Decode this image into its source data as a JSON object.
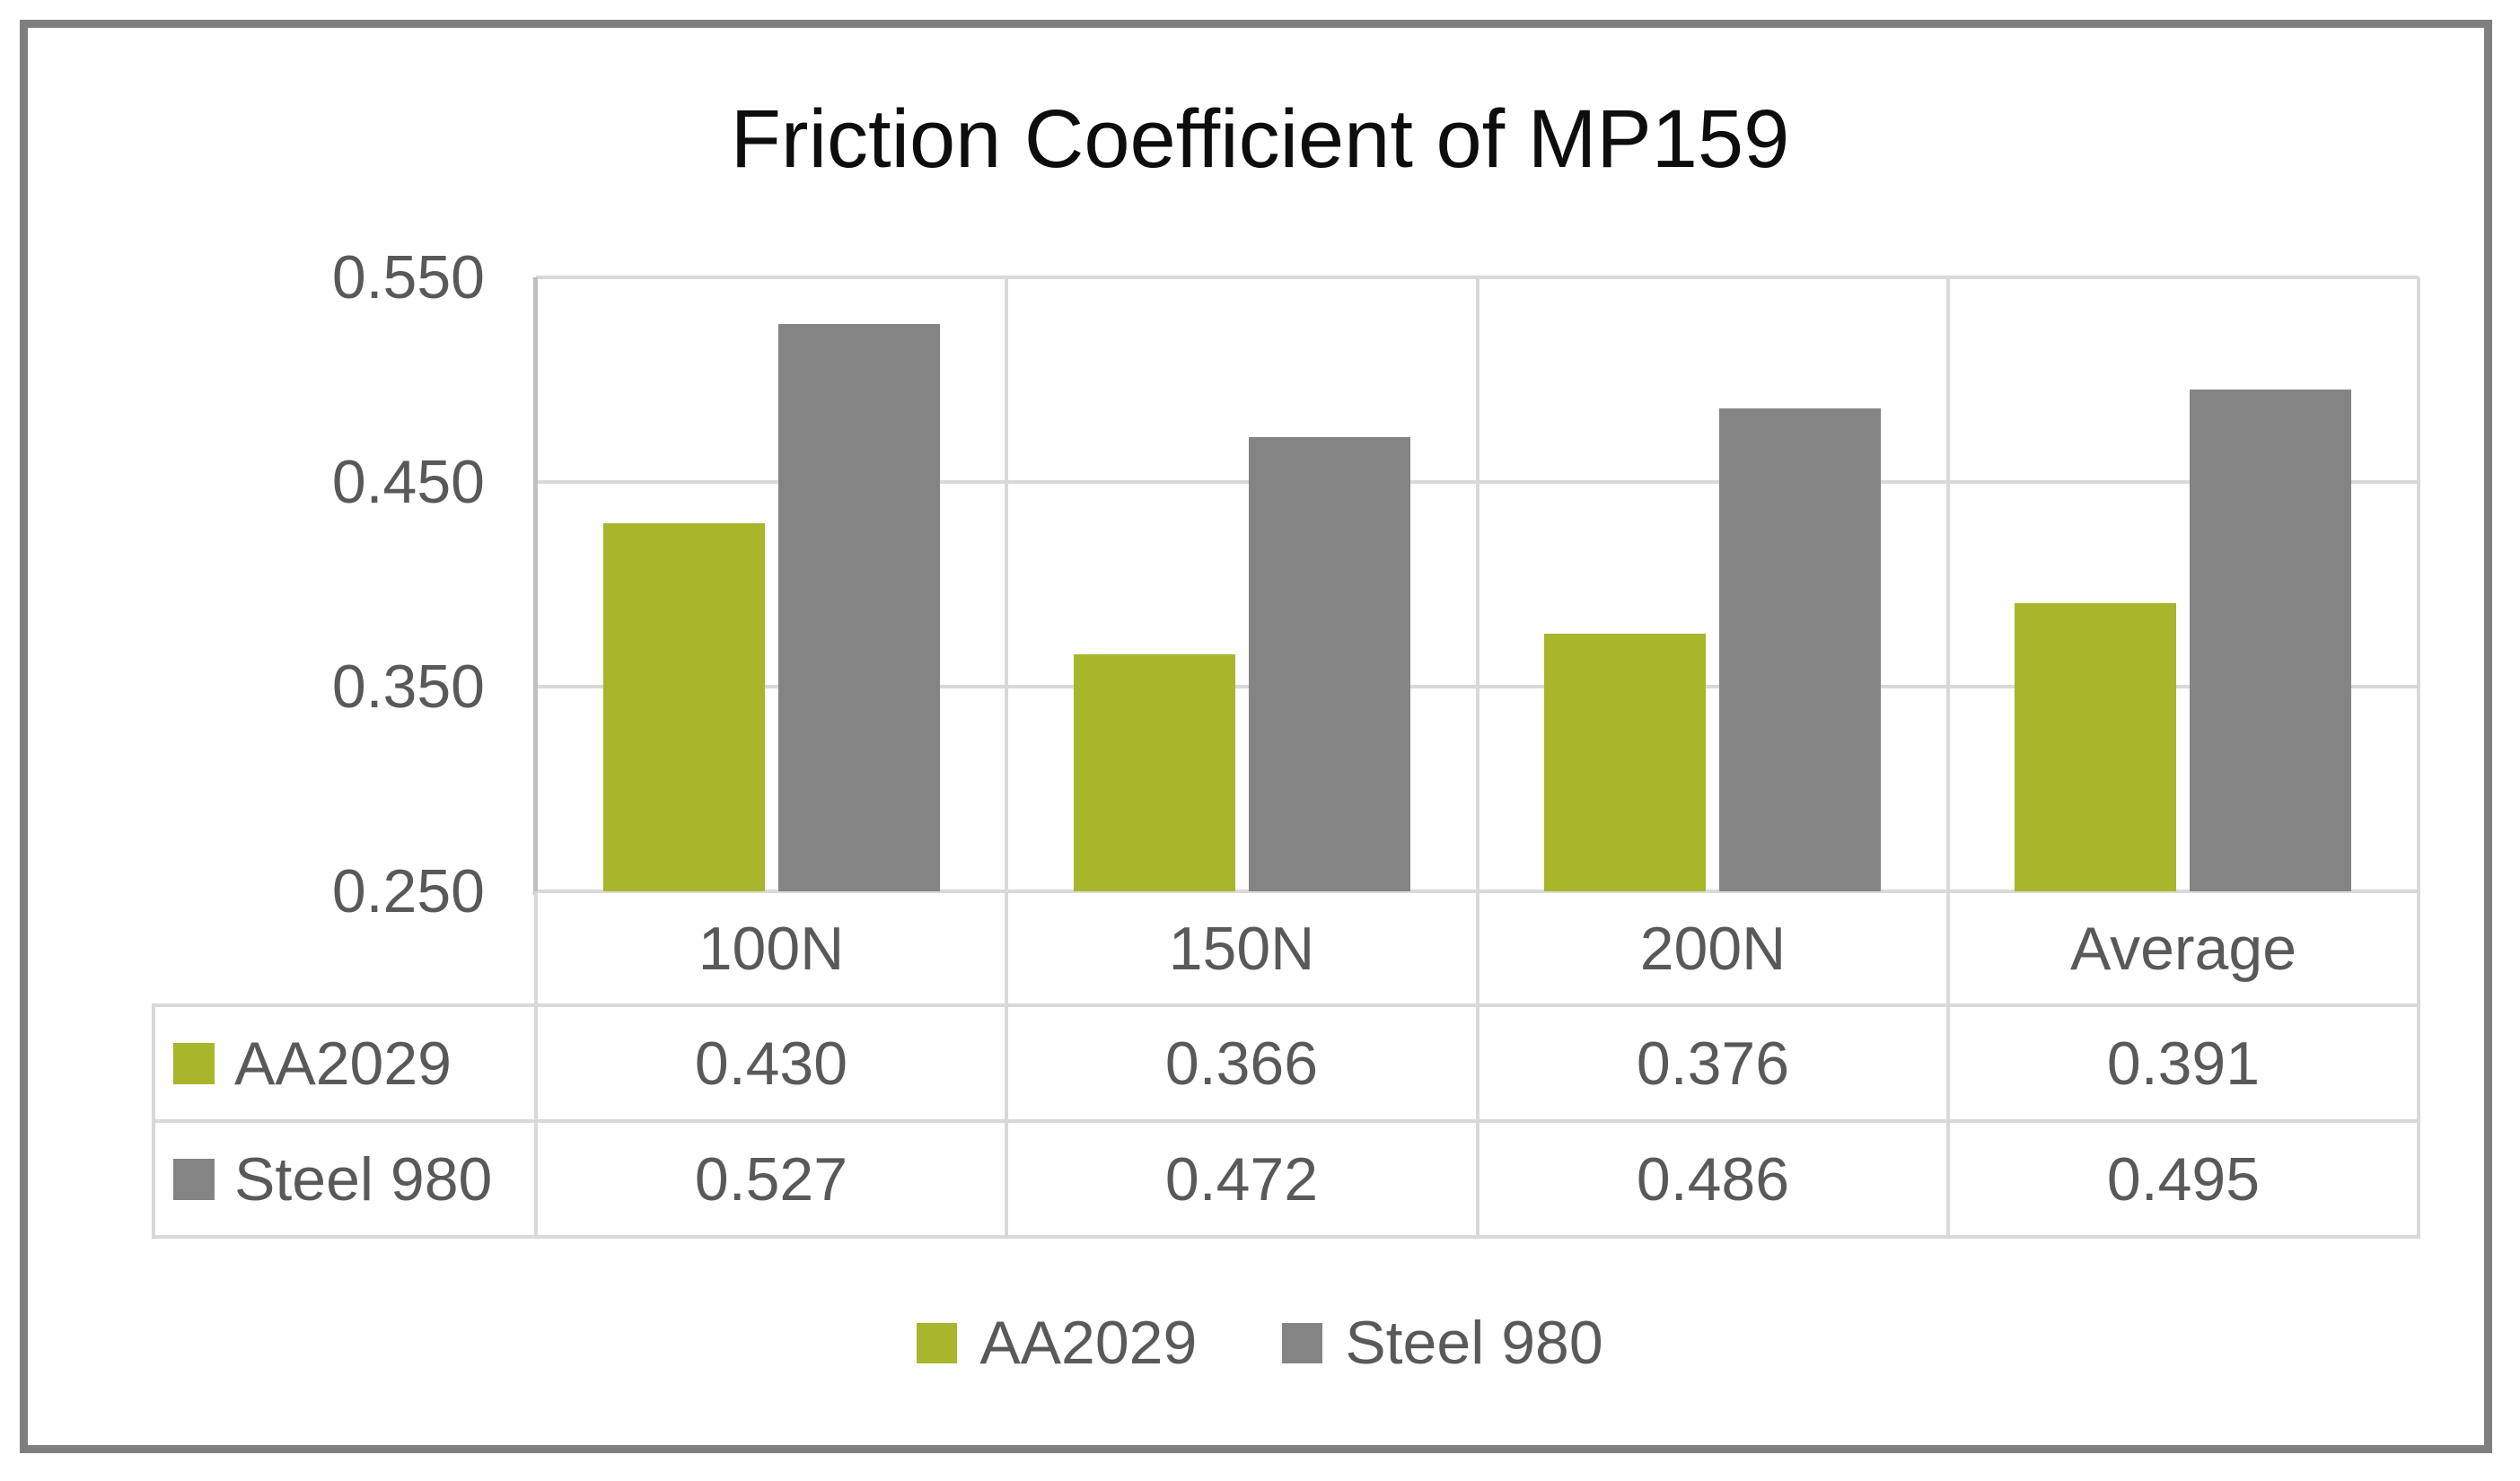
{
  "chart_data": {
    "type": "bar",
    "title": "Friction Coefficient of MP159",
    "categories": [
      "100N",
      "150N",
      "200N",
      "Average"
    ],
    "series": [
      {
        "name": "AA2029",
        "color": "#a7b62b",
        "values": [
          0.43,
          0.366,
          0.376,
          0.391
        ]
      },
      {
        "name": "Steel 980",
        "color": "#848484",
        "values": [
          0.527,
          0.472,
          0.486,
          0.495
        ]
      }
    ],
    "ylim": [
      0.25,
      0.55
    ],
    "yticks": [
      0.55,
      0.45,
      0.35,
      0.25
    ],
    "ytick_labels": [
      "0.550",
      "0.450",
      "0.350",
      "0.250"
    ],
    "grid": "horizontal-major",
    "legend_position": "bottom",
    "data_table_shown": true
  },
  "table": {
    "row_labels": [
      "AA2029",
      "Steel 980"
    ],
    "rows": [
      [
        "0.430",
        "0.366",
        "0.376",
        "0.391"
      ],
      [
        "0.527",
        "0.472",
        "0.486",
        "0.495"
      ]
    ]
  },
  "legend": {
    "items": [
      {
        "label": "AA2029",
        "color": "#a7b62b"
      },
      {
        "label": "Steel 980",
        "color": "#848484"
      }
    ]
  },
  "colors": {
    "frame_border": "#7f7f7f",
    "gridline": "#d9d9d9",
    "axis_line": "#bfbfbf",
    "text": "#595959",
    "title_text": "#0d0d0d",
    "background": "#ffffff"
  }
}
